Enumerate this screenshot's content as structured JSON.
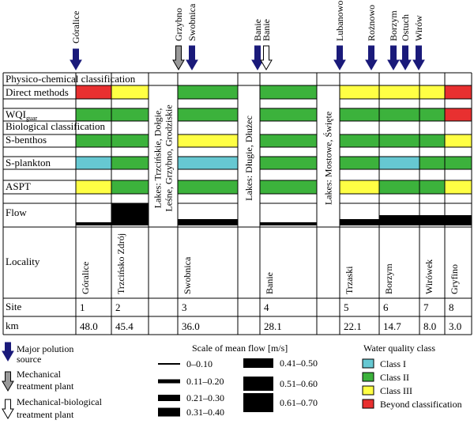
{
  "colors": {
    "class1": "#66c8d2",
    "class2": "#3cb23c",
    "class3": "#ffff44",
    "beyond": "#e83030",
    "arrow_major": "#1a1a7a",
    "arrow_mech": "#999999",
    "arrow_mechbio": "#ffffff",
    "flow_bar": "#000000"
  },
  "top_arrows": [
    {
      "label": "Góralice",
      "type": "major"
    },
    {
      "label": "Grzybno",
      "type": "mech"
    },
    {
      "label": "Swobnica",
      "type": "major"
    },
    {
      "label": "Banie",
      "type": "major"
    },
    {
      "label": "Banie",
      "type": "mechbio"
    },
    {
      "label": "Lubanowo",
      "type": "major"
    },
    {
      "label": "Rożnowo",
      "type": "major"
    },
    {
      "label": "Borzym",
      "type": "major"
    },
    {
      "label": "Ostuch",
      "type": "major"
    },
    {
      "label": "Wirów",
      "type": "major"
    }
  ],
  "row_labels": {
    "physchem": "Physico-chemical classification",
    "direct": "Direct methods",
    "wqi": "WQI",
    "wqi_sub": "guar",
    "biological": "Biological classification",
    "sbenthos": "S-benthos",
    "splankton": "S-plankton",
    "aspt": "ASPT",
    "flow": "Flow",
    "locality": "Locality",
    "site": "Site",
    "km": "km"
  },
  "lakes": [
    "Lakes: Trzcińskie, Dołgie, Leśne, Grzybno, Grodziskie",
    "Lakes: Długie, Dłużec",
    "Lakes: Mostowe, Święte"
  ],
  "sites": [
    {
      "locality": "Góralice",
      "site": "1",
      "km": "48.0"
    },
    {
      "locality": "Trzcińsko Zdrój",
      "site": "2",
      "km": "45.4"
    },
    {
      "locality": "Swobnica",
      "site": "3",
      "km": "36.0"
    },
    {
      "locality": "Banie",
      "site": "4",
      "km": "28.1"
    },
    {
      "locality": "Trzaski",
      "site": "5",
      "km": "22.1"
    },
    {
      "locality": "Borzym",
      "site": "6",
      "km": "14.7"
    },
    {
      "locality": "Wirówek",
      "site": "7",
      "km": "8.0"
    },
    {
      "locality": "Gryfino",
      "site": "8",
      "km": "3.0"
    }
  ],
  "classification": {
    "direct": [
      "beyond",
      "class3",
      "class2",
      "class2",
      "class3",
      "class3",
      "class3",
      "beyond"
    ],
    "wqi": [
      "class2",
      "class2",
      "class2",
      "class2",
      "class2",
      "class2",
      "class2",
      "beyond"
    ],
    "sbenthos": [
      "class2",
      "class2",
      "class3",
      "class2",
      "class2",
      "class2",
      "class2",
      "class3"
    ],
    "splankton": [
      "class1",
      "class2",
      "class1",
      "class2",
      "class2",
      "class1",
      "class2",
      "class2"
    ],
    "aspt": [
      "class3",
      "class2",
      "class2",
      "class2",
      "class3",
      "class2",
      "class2",
      "class3"
    ]
  },
  "flow_class": [
    1,
    4,
    2,
    1,
    2,
    3,
    3,
    3
  ],
  "legend": {
    "arrows": [
      {
        "type": "major",
        "label": "Major polution source"
      },
      {
        "type": "mech",
        "label": "Mechanical treatment plant"
      },
      {
        "type": "mechbio",
        "label": "Mechanical-biological treatment plant"
      }
    ],
    "flow_title": "Scale of mean flow [m/s]",
    "flow_scale": [
      "0–0.10",
      "0.11–0.20",
      "0.21–0.30",
      "0.31–0.40",
      "0.41–0.50",
      "0.51–0.60",
      "0.61–0.70"
    ],
    "quality_title": "Water quality class",
    "quality": [
      {
        "cls": "class1",
        "label": "Class I"
      },
      {
        "cls": "class2",
        "label": "Class II"
      },
      {
        "cls": "class3",
        "label": "Class III"
      },
      {
        "cls": "beyond",
        "label": "Beyond classification"
      }
    ]
  }
}
